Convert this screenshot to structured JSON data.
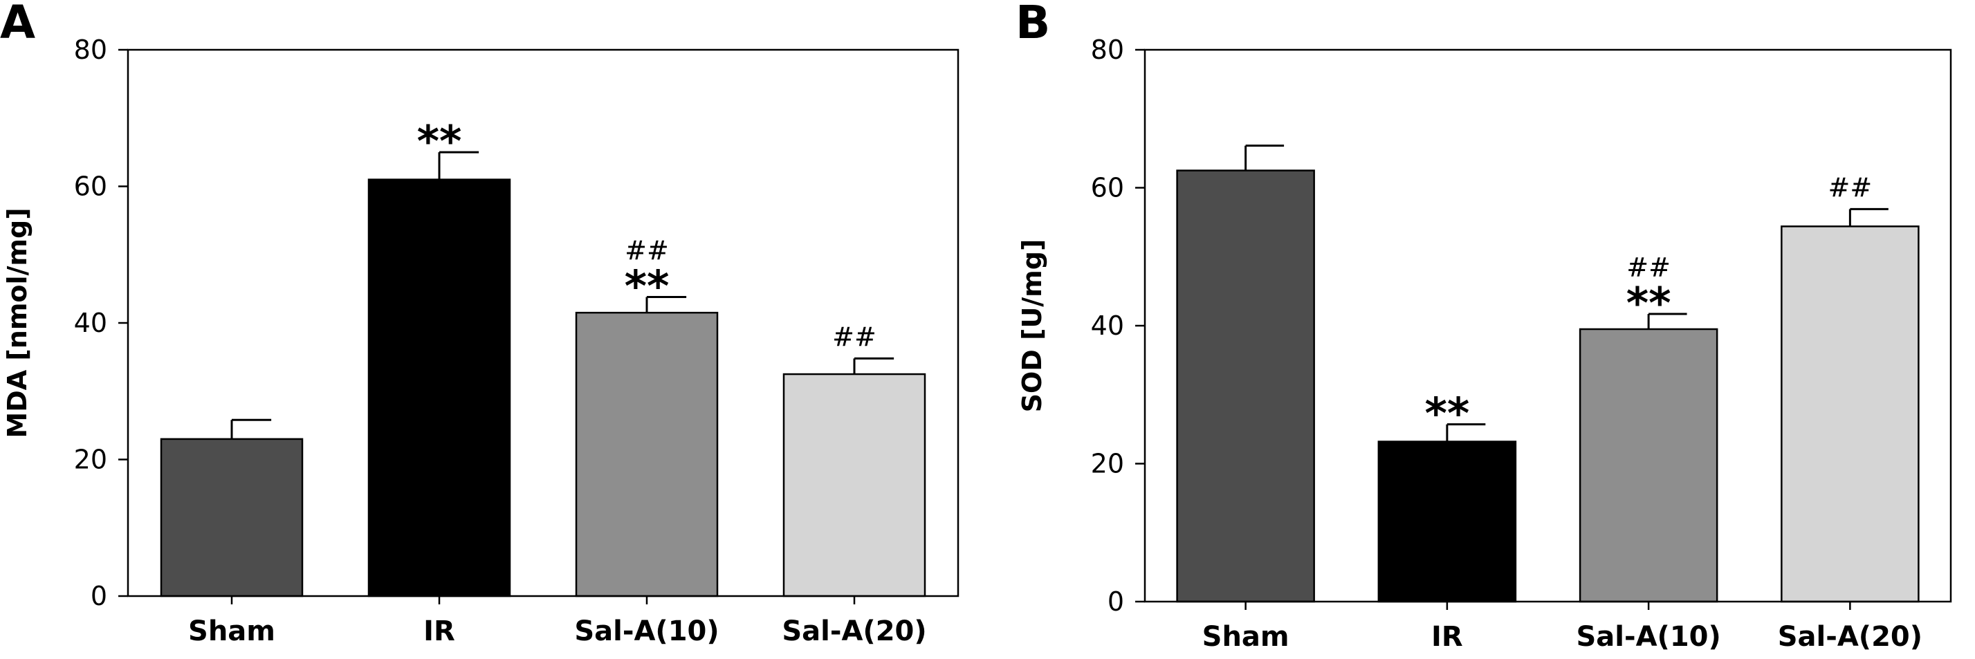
{
  "chart_data": [
    {
      "type": "bar",
      "panel_label": "A",
      "categories": [
        "Sham",
        "IR",
        "Sal-A(10)",
        "Sal-A(20)"
      ],
      "values": [
        23,
        61,
        41.5,
        32.5
      ],
      "errors": [
        2.8,
        4,
        2.3,
        2.3
      ],
      "colors": [
        "#4d4d4d",
        "#000000",
        "#8e8e8e",
        "#d5d5d5"
      ],
      "annotations": [
        [],
        [
          "**"
        ],
        [
          "##",
          "**"
        ],
        [
          "##"
        ]
      ],
      "ylabel": "MDA [nmol/mg]",
      "yticks": [
        "0",
        "20",
        "40",
        "60",
        "80"
      ],
      "ylim": [
        0,
        80
      ],
      "grid": false
    },
    {
      "type": "bar",
      "panel_label": "B",
      "categories": [
        "Sham",
        "IR",
        "Sal-A(10)",
        "Sal-A(20)"
      ],
      "values": [
        62.5,
        23.2,
        39.5,
        54.4
      ],
      "errors": [
        3.6,
        2.5,
        2.2,
        2.5
      ],
      "colors": [
        "#4d4d4d",
        "#000000",
        "#8e8e8e",
        "#d5d5d5"
      ],
      "annotations": [
        [],
        [
          "**"
        ],
        [
          "##",
          "**"
        ],
        [
          "##"
        ]
      ],
      "ylabel": "SOD [U/mg]",
      "yticks": [
        "0",
        "20",
        "40",
        "60",
        "80"
      ],
      "ylim": [
        0,
        80
      ],
      "grid": false
    }
  ]
}
